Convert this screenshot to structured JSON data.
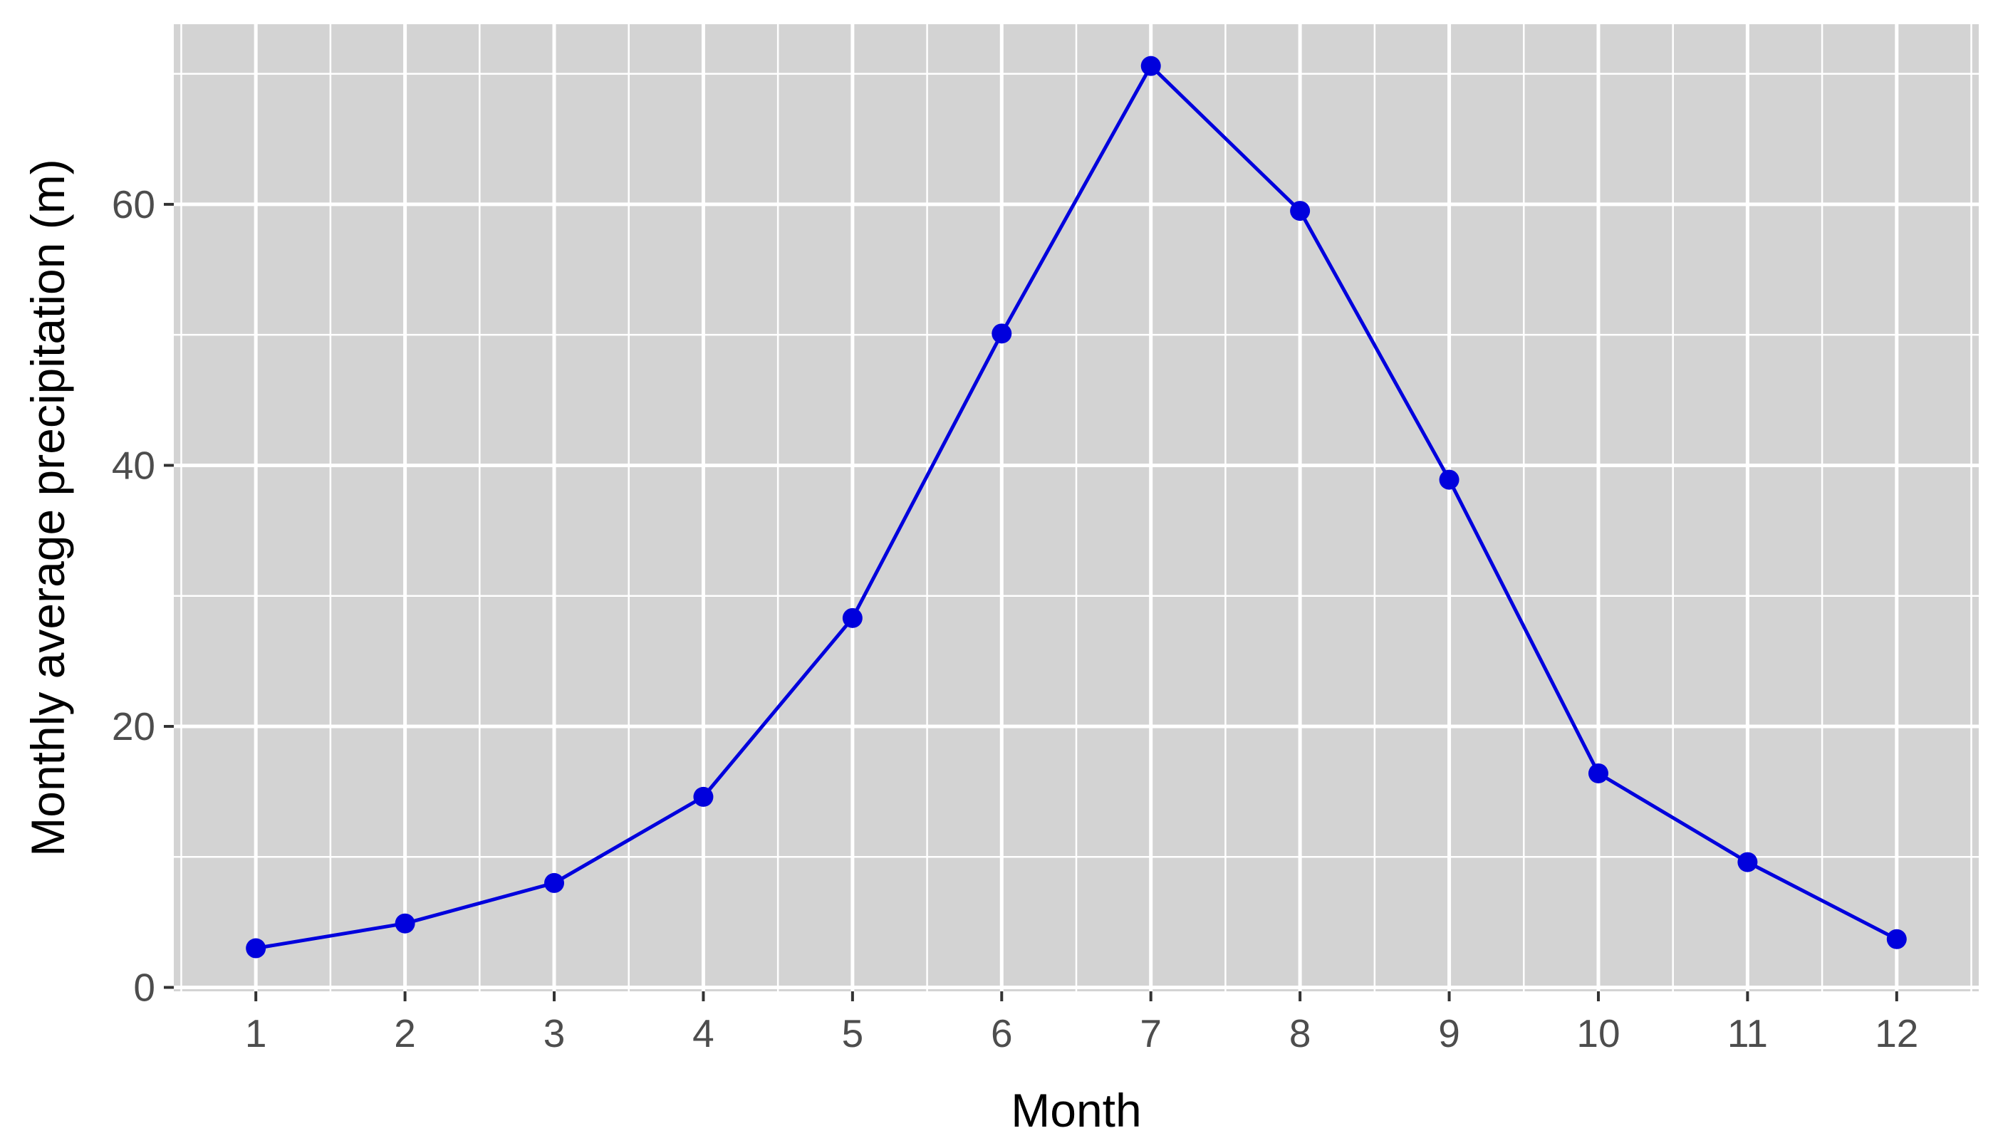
{
  "chart_data": {
    "type": "line",
    "title": "",
    "xlabel": "Month",
    "ylabel": "Monthly average precipitation (m)",
    "x": [
      1,
      2,
      3,
      4,
      5,
      6,
      7,
      8,
      9,
      10,
      11,
      12
    ],
    "xlim": [
      0.45,
      12.55
    ],
    "ylim": [
      -0.3,
      73.8
    ],
    "x_ticks": [
      "1",
      "2",
      "3",
      "4",
      "5",
      "6",
      "7",
      "8",
      "9",
      "10",
      "11",
      "12"
    ],
    "y_ticks": [
      0,
      20,
      40,
      60
    ],
    "y_tick_labels": [
      "0",
      "20",
      "40",
      "60"
    ],
    "grid": true,
    "legend": "none",
    "series": [
      {
        "values": [
          3.0,
          4.9,
          8.0,
          14.6,
          28.3,
          50.1,
          70.6,
          59.5,
          38.9,
          16.4,
          9.6,
          3.7
        ],
        "color": "#0000dd"
      }
    ],
    "colors": {
      "panel_background": "#d3d3d3",
      "grid_line": "#ffffff",
      "series_line": "#0000dd"
    }
  }
}
